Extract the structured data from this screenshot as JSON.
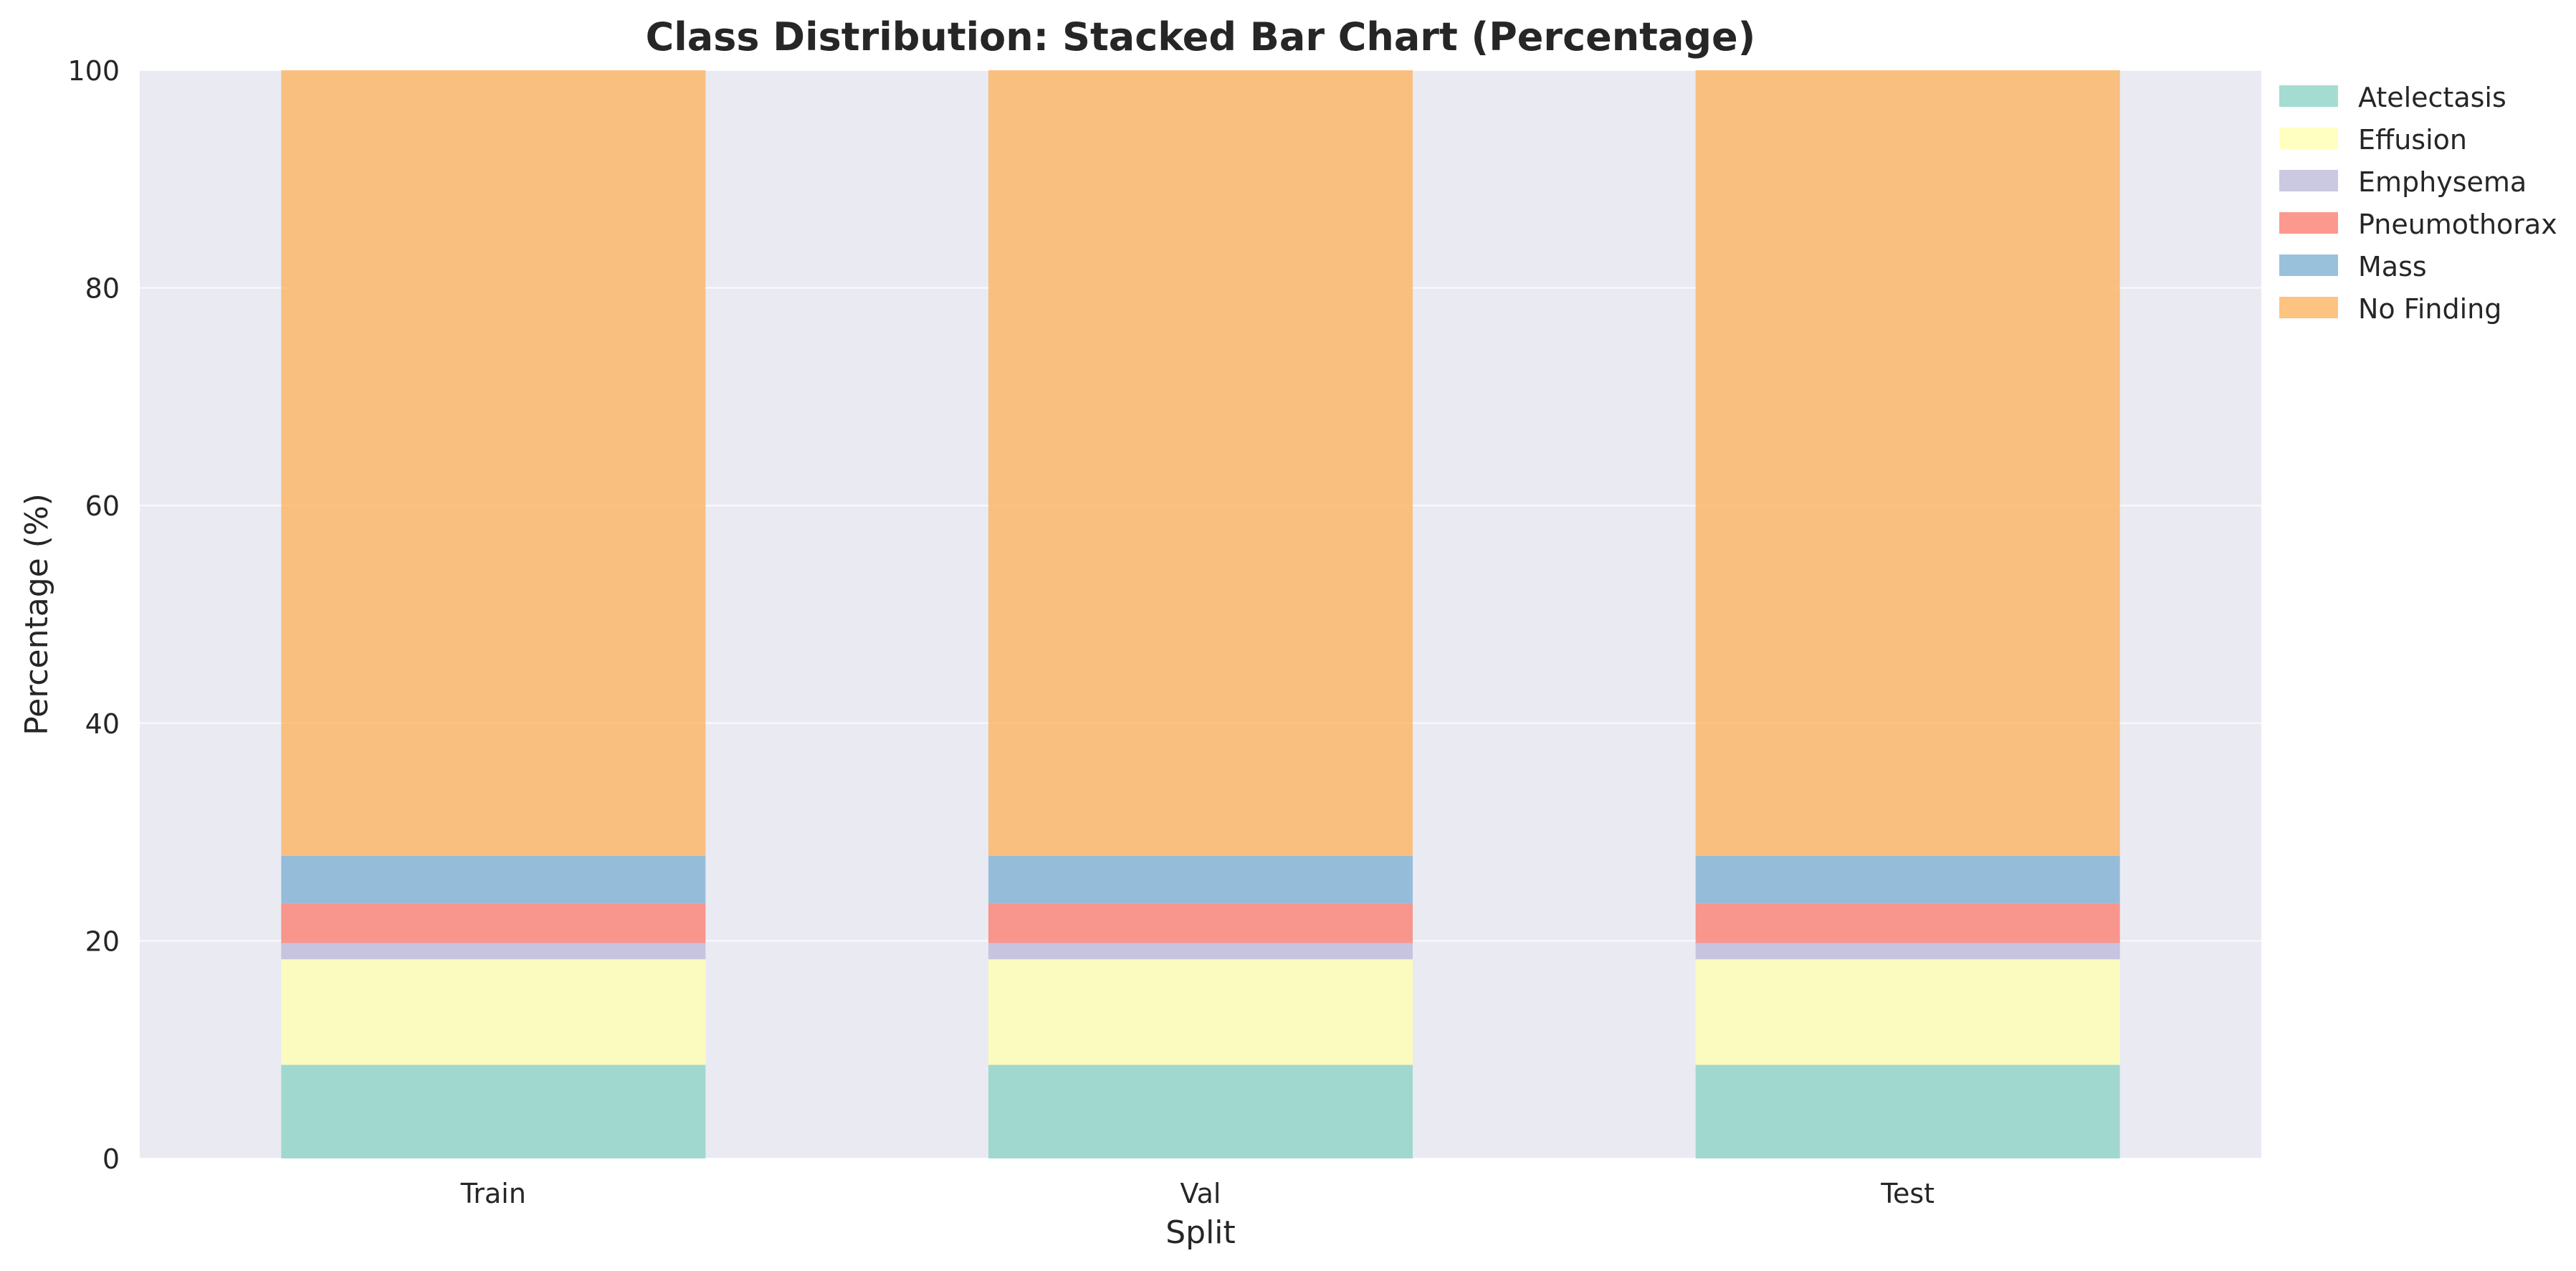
{
  "chart_data": {
    "type": "bar",
    "stacked": true,
    "title": "Class Distribution: Stacked Bar Chart (Percentage)",
    "xlabel": "Split",
    "ylabel": "Percentage (%)",
    "ylim": [
      0,
      100
    ],
    "yticks": [
      0,
      20,
      40,
      60,
      80,
      100
    ],
    "grid": true,
    "legend_position": "top-right outside",
    "categories": [
      "Train",
      "Val",
      "Test"
    ],
    "series": [
      {
        "name": "Atelectasis",
        "color": "#8dd3c7",
        "values": [
          8.6,
          8.6,
          8.6
        ]
      },
      {
        "name": "Effusion",
        "color": "#ffffb3",
        "values": [
          9.7,
          9.7,
          9.7
        ]
      },
      {
        "name": "Emphysema",
        "color": "#bebada",
        "values": [
          1.5,
          1.5,
          1.5
        ]
      },
      {
        "name": "Pneumothorax",
        "color": "#fb8072",
        "values": [
          3.6,
          3.6,
          3.6
        ]
      },
      {
        "name": "Mass",
        "color": "#80b1d3",
        "values": [
          4.4,
          4.4,
          4.4
        ]
      },
      {
        "name": "No Finding",
        "color": "#fdb462",
        "values": [
          72.2,
          72.2,
          72.2
        ]
      }
    ]
  }
}
